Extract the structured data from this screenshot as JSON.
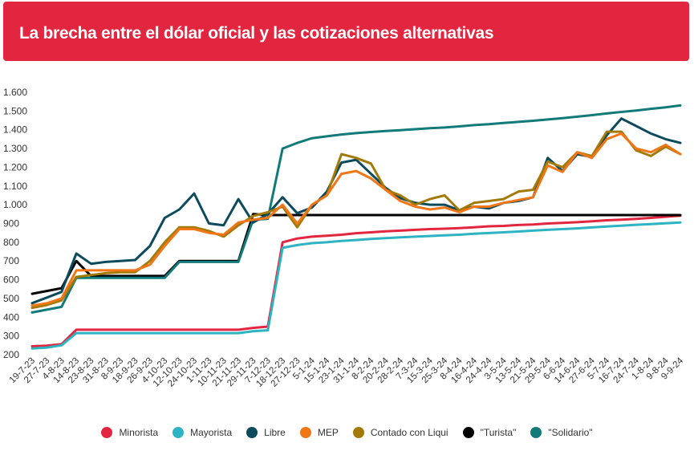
{
  "header": {
    "title": "La brecha entre el dólar oficial y las cotizaciones alternativas"
  },
  "chart_data": {
    "type": "line",
    "title": "La brecha entre el dólar oficial y las cotizaciones alternativas",
    "xlabel": "",
    "ylabel": "",
    "ylim": [
      200,
      1600
    ],
    "yticks": [
      200,
      300,
      400,
      500,
      600,
      700,
      800,
      900,
      1000,
      1100,
      1200,
      1300,
      1400,
      1500,
      1600
    ],
    "ytick_labels": [
      "200",
      "300",
      "400",
      "500",
      "600",
      "700",
      "800",
      "900",
      "1.000",
      "1.100",
      "1.200",
      "1.300",
      "1.400",
      "1.500",
      "1.600"
    ],
    "grid": false,
    "legend_position": "bottom",
    "categories": [
      "19-7-23",
      "27-7-23",
      "4-8-23",
      "14-8-23",
      "23-8-23",
      "31-8-23",
      "8-9-23",
      "18-9-23",
      "26-9-23",
      "4-10-23",
      "12-10-23",
      "24-10-23",
      "1-11-23",
      "10-11-23",
      "21-11-23",
      "29-11-23",
      "7-12-23",
      "18-12-23",
      "27-12-23",
      "5-1-24",
      "15-1-24",
      "23-1-24",
      "31-1-24",
      "8-2-24",
      "20-2-24",
      "28-2-24",
      "7-3-24",
      "15-3-24",
      "25-3-24",
      "8-4-24",
      "16-4-24",
      "24-4-24",
      "3-5-24",
      "13-5-24",
      "21-5-24",
      "29-5-24",
      "6-6-24",
      "14-6-24",
      "27-6-24",
      "5-7-24",
      "16-7-24",
      "24-7-24",
      "1-8-24",
      "9-8-24",
      "9-9-24"
    ],
    "series": [
      {
        "name": "Minorista",
        "color": "#e3263f",
        "values": [
          245,
          248,
          256,
          333,
          333,
          333,
          333,
          333,
          333,
          333,
          333,
          333,
          333,
          333,
          333,
          343,
          350,
          800,
          820,
          830,
          835,
          840,
          848,
          853,
          858,
          862,
          866,
          870,
          872,
          875,
          880,
          885,
          887,
          892,
          895,
          900,
          903,
          907,
          912,
          917,
          920,
          925,
          930,
          936,
          942
        ]
      },
      {
        "name": "Mayorista",
        "color": "#2db3c1",
        "values": [
          233,
          238,
          250,
          315,
          315,
          315,
          315,
          315,
          315,
          315,
          315,
          315,
          315,
          315,
          315,
          325,
          330,
          770,
          785,
          795,
          800,
          807,
          812,
          818,
          822,
          826,
          830,
          833,
          837,
          840,
          845,
          849,
          853,
          857,
          862,
          866,
          870,
          874,
          879,
          884,
          888,
          893,
          897,
          901,
          905
        ]
      },
      {
        "name": "Libre",
        "color": "#0d4a5c",
        "values": [
          475,
          505,
          535,
          740,
          685,
          695,
          700,
          705,
          780,
          930,
          975,
          1060,
          900,
          890,
          1030,
          905,
          950,
          1040,
          955,
          985,
          1070,
          1225,
          1240,
          1165,
          1090,
          1035,
          1010,
          1000,
          1000,
          970,
          990,
          980,
          1010,
          1020,
          1040,
          1250,
          1180,
          1270,
          1255,
          1370,
          1460,
          1420,
          1380,
          1350,
          1330
        ]
      },
      {
        "name": "MEP",
        "color": "#f07618",
        "values": [
          462,
          475,
          500,
          650,
          650,
          650,
          650,
          650,
          680,
          780,
          870,
          870,
          850,
          840,
          905,
          920,
          930,
          1000,
          900,
          1000,
          1050,
          1165,
          1180,
          1140,
          1080,
          1020,
          990,
          975,
          985,
          960,
          990,
          990,
          1010,
          1025,
          1040,
          1210,
          1175,
          1280,
          1250,
          1350,
          1380,
          1300,
          1280,
          1320,
          1270
        ]
      },
      {
        "name": "Contado con Liqui",
        "color": "#a37a08",
        "values": [
          450,
          465,
          490,
          615,
          625,
          635,
          640,
          640,
          700,
          800,
          880,
          880,
          860,
          830,
          890,
          940,
          960,
          990,
          880,
          1000,
          1050,
          1270,
          1250,
          1220,
          1080,
          1050,
          1000,
          1030,
          1050,
          970,
          1010,
          1020,
          1030,
          1070,
          1080,
          1230,
          1200,
          1280,
          1260,
          1390,
          1390,
          1290,
          1260,
          1310,
          1270
        ]
      },
      {
        "name": "\"Turista\"",
        "color": "#000000",
        "values": [
          525,
          540,
          555,
          700,
          620,
          620,
          620,
          620,
          620,
          620,
          700,
          700,
          700,
          700,
          700,
          950,
          945,
          945,
          945,
          945,
          945,
          945,
          945,
          945,
          945,
          945,
          945,
          945,
          945,
          945,
          945,
          945,
          945,
          945,
          945,
          945,
          945,
          945,
          945,
          945,
          945,
          945,
          945,
          945,
          945
        ]
      },
      {
        "name": "\"Solidario\"",
        "color": "#127a78",
        "values": [
          425,
          440,
          455,
          610,
          610,
          610,
          610,
          610,
          610,
          610,
          695,
          695,
          695,
          695,
          695,
          920,
          925,
          1300,
          1330,
          1355,
          1365,
          1375,
          1382,
          1388,
          1393,
          1398,
          1403,
          1408,
          1412,
          1418,
          1425,
          1430,
          1436,
          1442,
          1448,
          1455,
          1462,
          1470,
          1478,
          1487,
          1495,
          1503,
          1512,
          1520,
          1530
        ]
      }
    ]
  }
}
